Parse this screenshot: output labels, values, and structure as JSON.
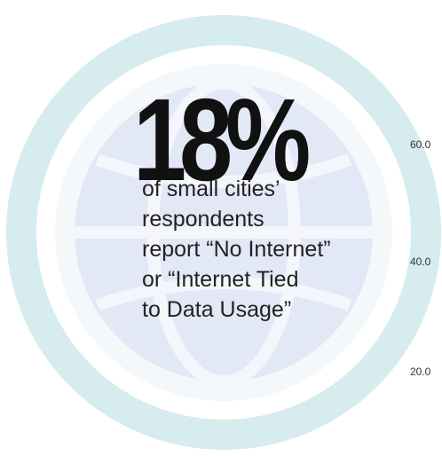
{
  "headline": "18%",
  "description_lines": [
    "of small cities’",
    "respondents",
    "report “No Internet”",
    "or “Internet Tied",
    "to Data Usage”"
  ],
  "background_axis": {
    "ticks": [
      "60.0",
      "40.0",
      "20.0"
    ]
  }
}
